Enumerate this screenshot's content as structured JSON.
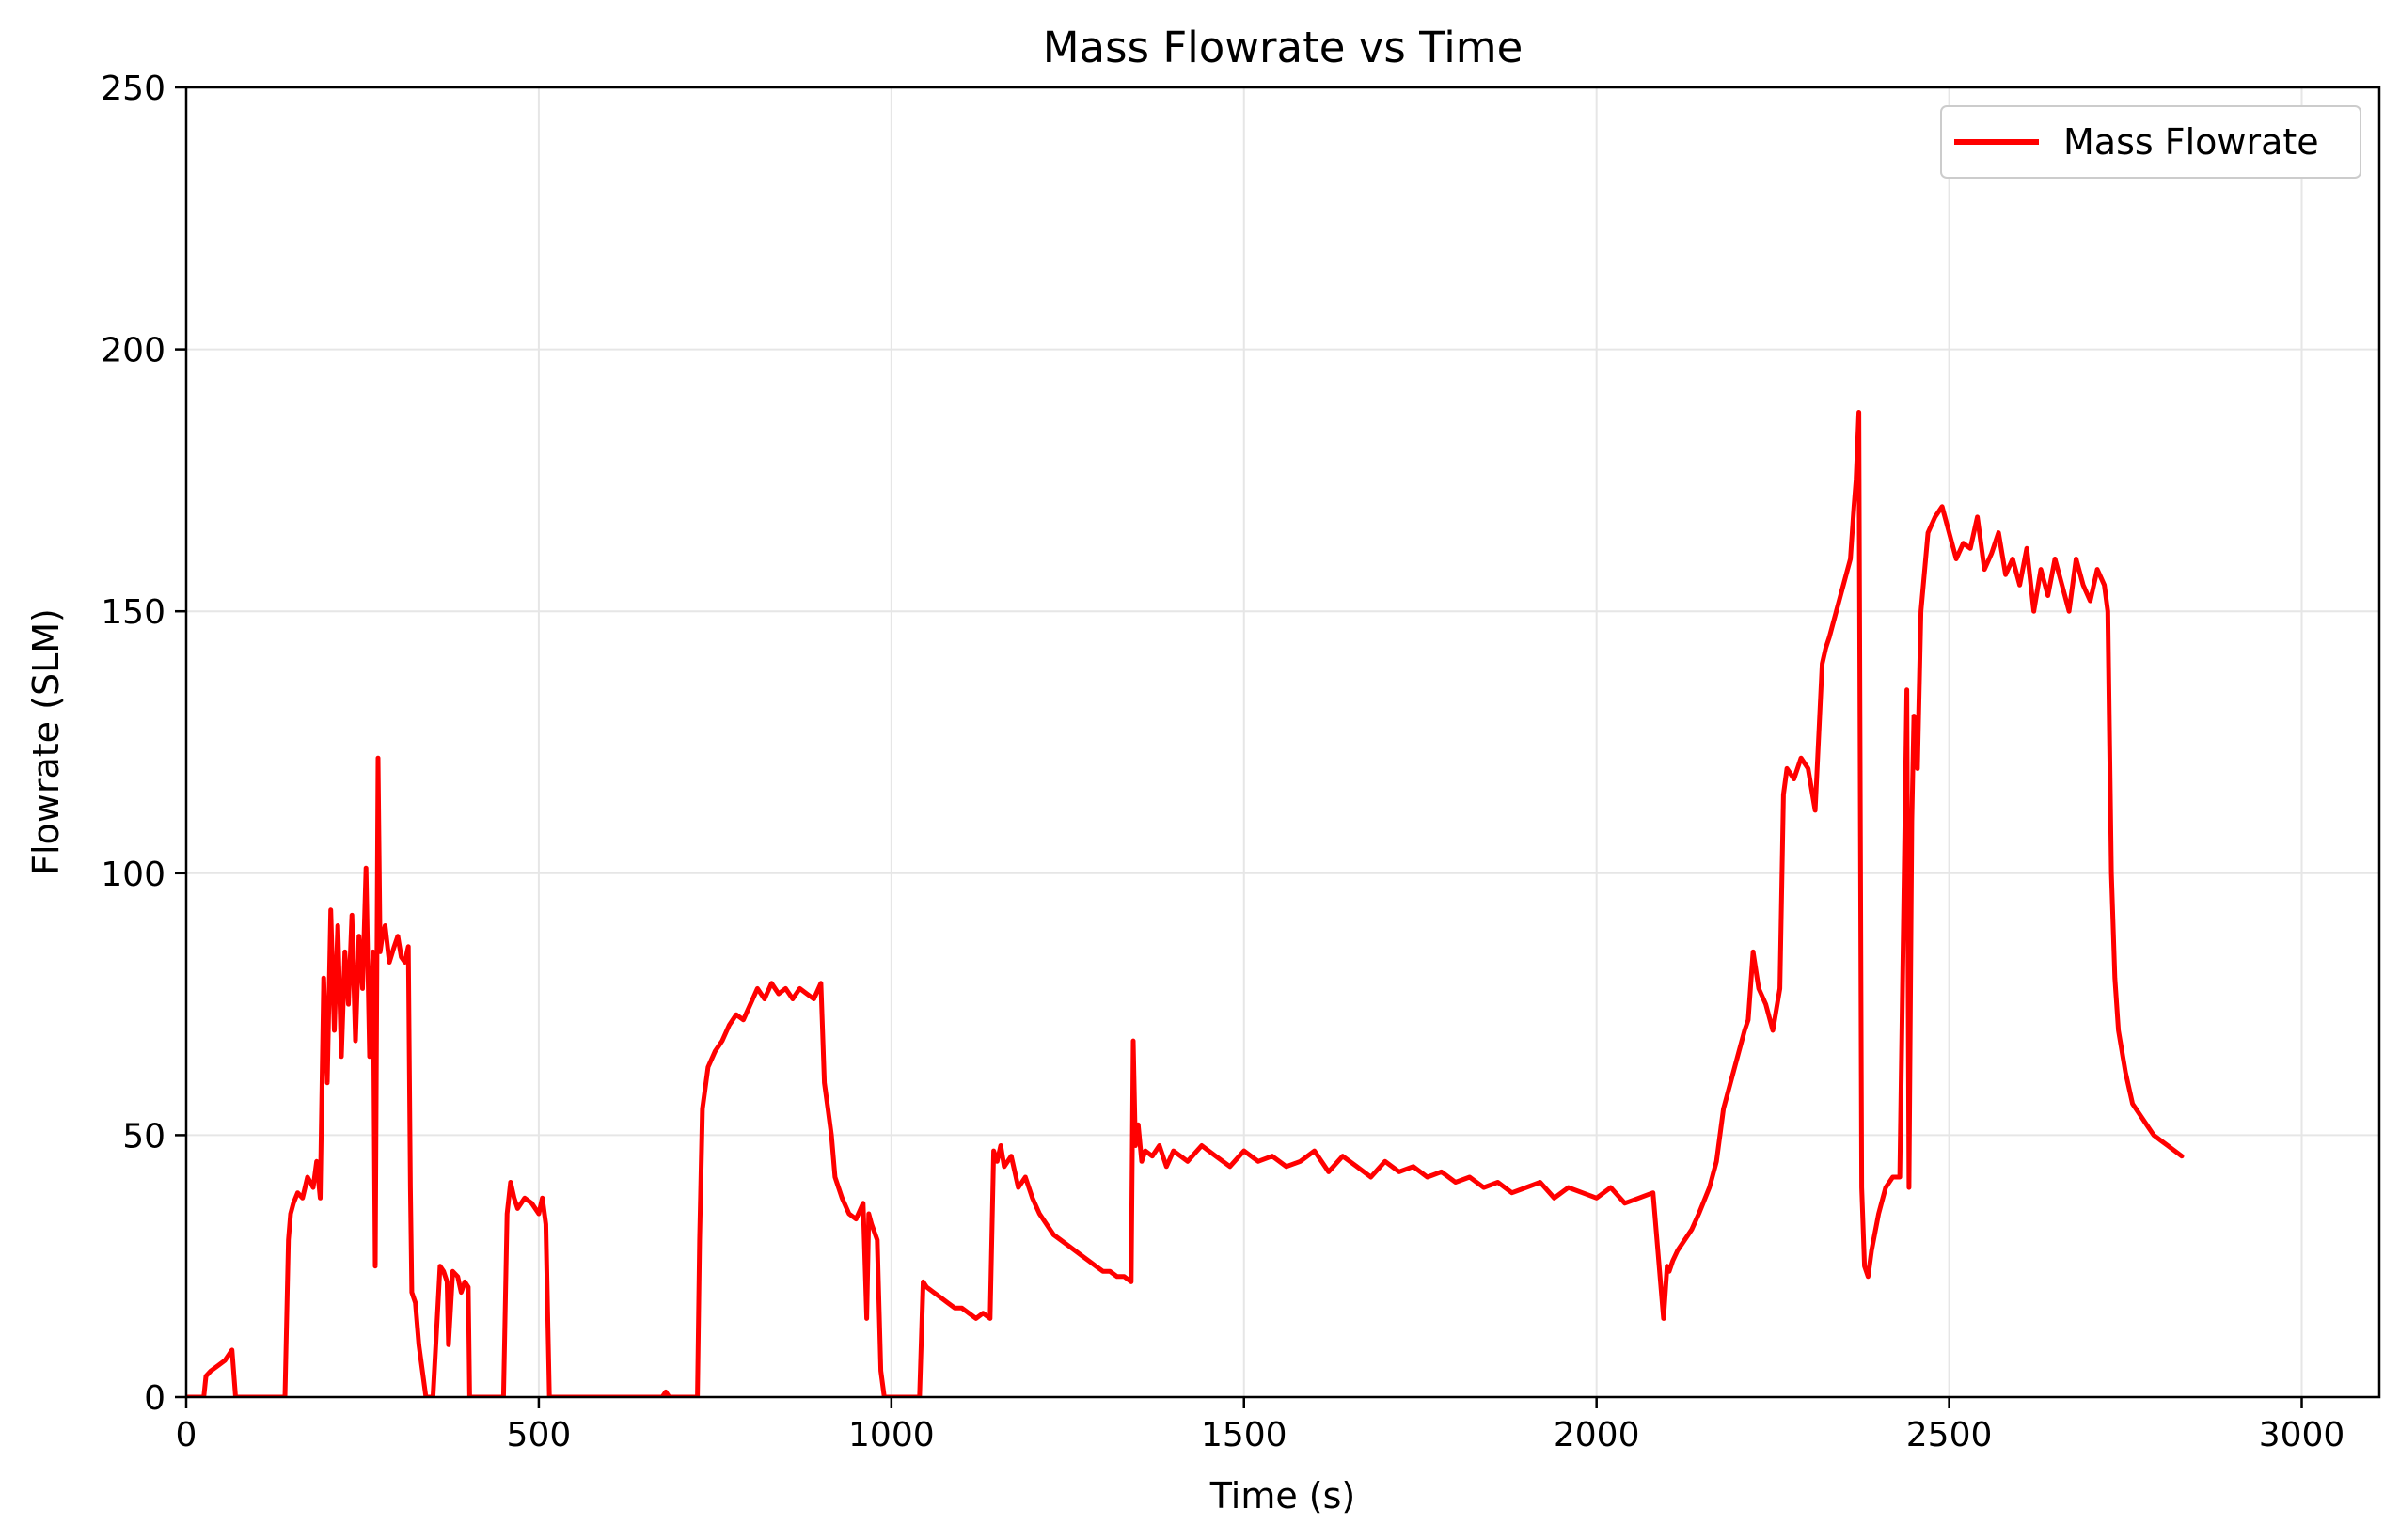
{
  "chart_data": {
    "type": "line",
    "title": "Mass Flowrate vs Time",
    "xlabel": "Time (s)",
    "ylabel": "Flowrate (SLM)",
    "xlim": [
      0,
      3110
    ],
    "ylim": [
      0,
      250
    ],
    "xticks": [
      0,
      500,
      1000,
      1500,
      2000,
      2500,
      3000
    ],
    "yticks": [
      0,
      50,
      100,
      150,
      200,
      250
    ],
    "grid": true,
    "legend_position": "top-right",
    "series": [
      {
        "name": "Mass Flowrate",
        "color": "#ff0000",
        "x": [
          0,
          25,
          28,
          35,
          45,
          55,
          60,
          65,
          70,
          140,
          145,
          148,
          152,
          158,
          165,
          172,
          180,
          185,
          190,
          195,
          200,
          205,
          210,
          215,
          220,
          225,
          230,
          235,
          240,
          245,
          250,
          255,
          260,
          265,
          268,
          272,
          275,
          278,
          282,
          288,
          295,
          300,
          305,
          310,
          315,
          318,
          320,
          325,
          330,
          340,
          350,
          360,
          365,
          370,
          372,
          378,
          385,
          390,
          395,
          400,
          402,
          405,
          410,
          415,
          450,
          455,
          460,
          465,
          470,
          480,
          490,
          500,
          505,
          510,
          515,
          675,
          680,
          685,
          725,
          728,
          732,
          740,
          750,
          760,
          770,
          780,
          790,
          800,
          810,
          820,
          830,
          840,
          850,
          860,
          870,
          880,
          890,
          900,
          905,
          910,
          915,
          920,
          930,
          940,
          950,
          960,
          965,
          968,
          972,
          980,
          985,
          990,
          995,
          1040,
          1045,
          1050,
          1060,
          1070,
          1080,
          1090,
          1100,
          1110,
          1120,
          1130,
          1140,
          1145,
          1150,
          1155,
          1160,
          1170,
          1180,
          1190,
          1200,
          1210,
          1220,
          1230,
          1240,
          1250,
          1260,
          1270,
          1280,
          1290,
          1300,
          1310,
          1320,
          1330,
          1340,
          1343,
          1346,
          1350,
          1355,
          1360,
          1370,
          1380,
          1390,
          1400,
          1420,
          1440,
          1460,
          1480,
          1500,
          1520,
          1540,
          1560,
          1580,
          1600,
          1620,
          1640,
          1660,
          1680,
          1700,
          1720,
          1740,
          1760,
          1780,
          1800,
          1820,
          1840,
          1860,
          1880,
          1900,
          1920,
          1940,
          1960,
          1980,
          2000,
          2020,
          2040,
          2060,
          2080,
          2095,
          2100,
          2103,
          2108,
          2115,
          2125,
          2135,
          2145,
          2160,
          2170,
          2180,
          2190,
          2200,
          2210,
          2215,
          2222,
          2230,
          2240,
          2250,
          2260,
          2265,
          2270,
          2280,
          2290,
          2300,
          2310,
          2320,
          2325,
          2330,
          2340,
          2350,
          2360,
          2365,
          2368,
          2372,
          2376,
          2380,
          2385,
          2390,
          2400,
          2410,
          2420,
          2430,
          2440,
          2443,
          2447,
          2450,
          2455,
          2460,
          2470,
          2480,
          2490,
          2500,
          2510,
          2520,
          2530,
          2540,
          2550,
          2560,
          2570,
          2580,
          2590,
          2600,
          2610,
          2620,
          2630,
          2640,
          2650,
          2660,
          2670,
          2680,
          2690,
          2700,
          2710,
          2720,
          2725,
          2730,
          2735,
          2740,
          2750,
          2760,
          2770,
          2780,
          2790,
          2800,
          2810,
          2820,
          2830
        ],
        "values": [
          0,
          0,
          4,
          5,
          6,
          7,
          8,
          9,
          0,
          0,
          30,
          35,
          37,
          39,
          38,
          42,
          40,
          45,
          38,
          80,
          60,
          93,
          70,
          90,
          65,
          85,
          75,
          92,
          68,
          88,
          78,
          101,
          65,
          85,
          25,
          122,
          85,
          88,
          90,
          83,
          86,
          88,
          84,
          83,
          86,
          40,
          20,
          18,
          10,
          0,
          0,
          25,
          24,
          22,
          10,
          24,
          23,
          20,
          22,
          21,
          0,
          0,
          0,
          0,
          0,
          35,
          41,
          38,
          36,
          38,
          37,
          35,
          38,
          33,
          0,
          0,
          1,
          0,
          0,
          30,
          55,
          63,
          66,
          68,
          71,
          73,
          72,
          75,
          78,
          76,
          79,
          77,
          78,
          76,
          78,
          77,
          76,
          79,
          60,
          55,
          50,
          42,
          38,
          35,
          34,
          37,
          15,
          35,
          33,
          30,
          5,
          0,
          0,
          0,
          22,
          21,
          20,
          19,
          18,
          17,
          17,
          16,
          15,
          16,
          15,
          47,
          45,
          48,
          44,
          46,
          40,
          42,
          38,
          35,
          33,
          31,
          30,
          29,
          28,
          27,
          26,
          25,
          24,
          24,
          23,
          23,
          22,
          68,
          48,
          52,
          45,
          47,
          46,
          48,
          44,
          47,
          45,
          48,
          46,
          44,
          47,
          45,
          46,
          44,
          45,
          47,
          43,
          46,
          44,
          42,
          45,
          43,
          44,
          42,
          43,
          41,
          42,
          40,
          41,
          39,
          40,
          41,
          38,
          40,
          39,
          38,
          40,
          37,
          38,
          39,
          15,
          25,
          24,
          26,
          28,
          30,
          32,
          35,
          40,
          45,
          55,
          60,
          65,
          70,
          72,
          85,
          78,
          75,
          70,
          78,
          115,
          120,
          118,
          122,
          120,
          112,
          140,
          143,
          145,
          150,
          155,
          160,
          170,
          175,
          188,
          40,
          25,
          23,
          28,
          35,
          40,
          42,
          42,
          135,
          40,
          110,
          130,
          120,
          150,
          165,
          168,
          170,
          165,
          160,
          163,
          162,
          168,
          158,
          161,
          165,
          157,
          160,
          155,
          162,
          150,
          158,
          153,
          160,
          155,
          150,
          160,
          155,
          152,
          158,
          155,
          150,
          100,
          80,
          70,
          62,
          56,
          54,
          52,
          50,
          49,
          48,
          47,
          46
        ]
      }
    ]
  }
}
